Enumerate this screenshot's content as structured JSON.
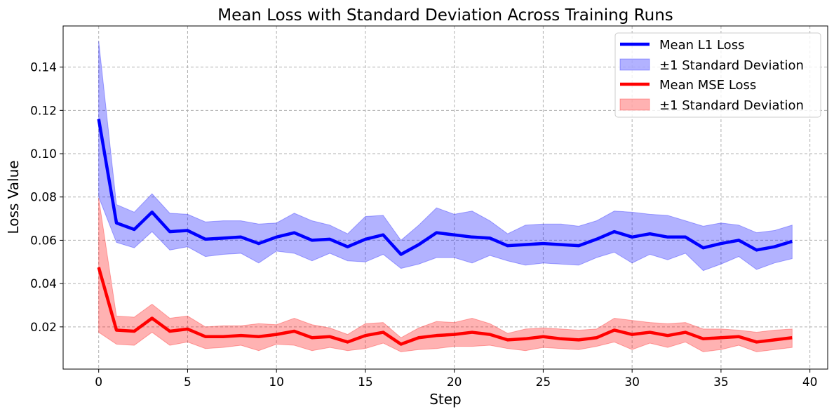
{
  "chart_data": {
    "type": "line",
    "title": "Mean Loss with Standard Deviation Across Training Runs",
    "xlabel": "Step",
    "ylabel": "Loss Value",
    "xlim": [
      -2,
      41
    ],
    "ylim": [
      0.0005,
      0.159
    ],
    "xticks": [
      0,
      5,
      10,
      15,
      20,
      25,
      30,
      35,
      40
    ],
    "yticks": [
      0.02,
      0.04,
      0.06,
      0.08,
      0.1,
      0.12,
      0.14
    ],
    "ytick_labels": [
      "0.02",
      "0.04",
      "0.06",
      "0.08",
      "0.10",
      "0.12",
      "0.14"
    ],
    "grid": true,
    "legend_position": "top-right",
    "x": [
      0,
      1,
      2,
      3,
      4,
      5,
      6,
      7,
      8,
      9,
      10,
      11,
      12,
      13,
      14,
      15,
      16,
      17,
      18,
      19,
      20,
      21,
      22,
      23,
      24,
      25,
      26,
      27,
      28,
      29,
      30,
      31,
      32,
      33,
      34,
      35,
      36,
      37,
      38,
      39
    ],
    "series": [
      {
        "name": "Mean L1 Loss",
        "band_name": "±1 Standard Deviation",
        "color": "#0000ff",
        "band_color": "#0000ff",
        "mean": [
          0.116,
          0.068,
          0.065,
          0.073,
          0.064,
          0.0645,
          0.0605,
          0.061,
          0.0615,
          0.0585,
          0.0615,
          0.0635,
          0.06,
          0.0605,
          0.057,
          0.0605,
          0.0625,
          0.0535,
          0.058,
          0.0635,
          0.0625,
          0.0615,
          0.061,
          0.0575,
          0.058,
          0.0585,
          0.058,
          0.0575,
          0.0605,
          0.064,
          0.0615,
          0.063,
          0.0615,
          0.0615,
          0.0565,
          0.0585,
          0.06,
          0.0555,
          0.057,
          0.0595
        ],
        "upper": [
          0.152,
          0.0765,
          0.073,
          0.0815,
          0.0725,
          0.072,
          0.0685,
          0.069,
          0.069,
          0.0675,
          0.068,
          0.0725,
          0.069,
          0.067,
          0.063,
          0.071,
          0.0715,
          0.06,
          0.067,
          0.075,
          0.072,
          0.0735,
          0.069,
          0.063,
          0.067,
          0.0675,
          0.0675,
          0.0665,
          0.069,
          0.0735,
          0.073,
          0.072,
          0.0715,
          0.069,
          0.0665,
          0.068,
          0.067,
          0.0635,
          0.0645,
          0.067
        ],
        "lower": [
          0.08,
          0.059,
          0.0565,
          0.064,
          0.0555,
          0.057,
          0.0525,
          0.0535,
          0.054,
          0.0495,
          0.055,
          0.054,
          0.0505,
          0.054,
          0.0505,
          0.05,
          0.0535,
          0.047,
          0.049,
          0.052,
          0.052,
          0.0495,
          0.053,
          0.0505,
          0.0485,
          0.0495,
          0.049,
          0.0485,
          0.052,
          0.0545,
          0.0495,
          0.0535,
          0.051,
          0.054,
          0.046,
          0.049,
          0.0525,
          0.0465,
          0.0495,
          0.0515
        ]
      },
      {
        "name": "Mean MSE Loss",
        "band_name": "±1 Standard Deviation",
        "color": "#ff0000",
        "band_color": "#ff0000",
        "mean": [
          0.0475,
          0.0185,
          0.018,
          0.024,
          0.018,
          0.019,
          0.0155,
          0.0155,
          0.016,
          0.0155,
          0.0165,
          0.018,
          0.015,
          0.0155,
          0.013,
          0.016,
          0.0175,
          0.012,
          0.015,
          0.016,
          0.0165,
          0.0175,
          0.0165,
          0.014,
          0.0145,
          0.0155,
          0.0145,
          0.014,
          0.015,
          0.0185,
          0.0165,
          0.0175,
          0.016,
          0.0175,
          0.0145,
          0.015,
          0.0155,
          0.013,
          0.014,
          0.015
        ],
        "upper": [
          0.0795,
          0.025,
          0.0245,
          0.0305,
          0.024,
          0.025,
          0.02,
          0.0205,
          0.0205,
          0.0215,
          0.021,
          0.024,
          0.021,
          0.0195,
          0.0165,
          0.0215,
          0.022,
          0.015,
          0.0195,
          0.0225,
          0.022,
          0.024,
          0.0215,
          0.017,
          0.019,
          0.0195,
          0.019,
          0.0185,
          0.019,
          0.024,
          0.023,
          0.022,
          0.0215,
          0.022,
          0.019,
          0.019,
          0.0185,
          0.0175,
          0.0185,
          0.019
        ],
        "lower": [
          0.0175,
          0.012,
          0.0115,
          0.0175,
          0.0115,
          0.013,
          0.01,
          0.0105,
          0.0115,
          0.009,
          0.012,
          0.0115,
          0.009,
          0.0105,
          0.009,
          0.01,
          0.0125,
          0.0085,
          0.0095,
          0.01,
          0.011,
          0.011,
          0.0115,
          0.01,
          0.009,
          0.0105,
          0.01,
          0.0095,
          0.011,
          0.013,
          0.0095,
          0.0125,
          0.0105,
          0.013,
          0.0085,
          0.0095,
          0.0115,
          0.0085,
          0.0095,
          0.0105
        ]
      }
    ]
  }
}
